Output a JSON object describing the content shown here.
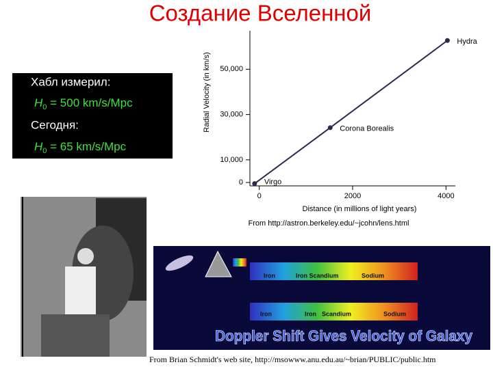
{
  "title": "Создание Вселенной",
  "box": {
    "line1": "Хабл измерил:",
    "h0_old": {
      "symbol": "H",
      "subscript": "0",
      "text": " = 500 km/s/Mpc"
    },
    "line2": "Сегодня:",
    "h0_new": {
      "symbol": "H",
      "subscript": "0",
      "text": " = 65 km/s/Mpc"
    }
  },
  "chart_data": {
    "type": "line",
    "x_label": "Distance (in millions of light years)",
    "y_label": "Radial Velocity (in km/s)",
    "x": [
      -100,
      1520,
      4030
    ],
    "values": [
      -500,
      24200,
      62700
    ],
    "labels": [
      "Virgo",
      "Corona Borealis",
      "Hydra"
    ],
    "color": "#2a2a4a",
    "xlim": [
      -200,
      4200
    ],
    "xticks": [
      0,
      2000,
      4000
    ],
    "ylim": [
      -1500,
      67000
    ],
    "yticks": [
      0,
      {
        "value": 10000,
        "label": "10,000"
      },
      {
        "value": 30000,
        "label": "30,000"
      },
      {
        "value": 50000,
        "label": "50,000"
      }
    ]
  },
  "chart_source": "From http://astron.berkeley.edu/~jcohn/lens.html",
  "spectrum": {
    "top_labels": [
      "Iron",
      "Iron Scandium",
      "Sodium"
    ],
    "bottom_labels": [
      "Iron",
      "Iron",
      "Scandium",
      "Sodium"
    ],
    "caption": "Doppler Shift Gives Velocity of Galaxy"
  },
  "image_source": "From Brian Schmidt's web site, http://msowww.anu.edu.au/~brian/PUBLIC/public.htm"
}
